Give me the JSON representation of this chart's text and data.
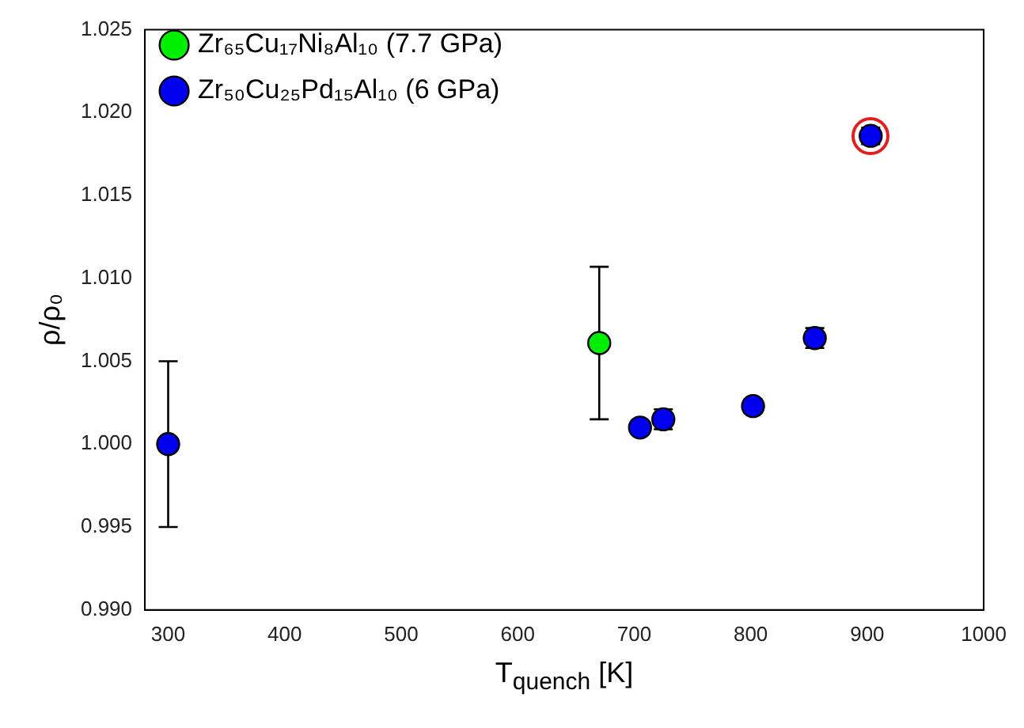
{
  "chart_data": {
    "type": "scatter",
    "xlabel": "T$_{quench}$ [K]",
    "ylabel": "ρ/ρ₀",
    "xlim": [
      280,
      1000
    ],
    "xticks": [
      300,
      400,
      500,
      600,
      700,
      800,
      900,
      1000
    ],
    "ylim": [
      0.99,
      1.025
    ],
    "yticks": [
      {
        "value": 0.99,
        "label": "0.990"
      },
      {
        "value": 0.995,
        "label": "0.995"
      },
      {
        "value": 1.0,
        "label": "1.000"
      },
      {
        "value": 1.005,
        "label": "1.005"
      },
      {
        "value": 1.01,
        "label": "1.010"
      },
      {
        "value": 1.015,
        "label": "1.015"
      },
      {
        "value": 1.02,
        "label": "1.020"
      },
      {
        "value": 1.025,
        "label": "1.025"
      }
    ],
    "grid": false,
    "legend": "top left",
    "marker": "circle",
    "series": [
      {
        "name": "Zr₆₅Cu₁₇Ni₈Al₁₀ (7.7 GPa)",
        "color": "#00ee00",
        "x": [
          670
        ],
        "values": [
          1.0061
        ],
        "errors": [
          [
            1.0015,
            1.0107
          ]
        ]
      },
      {
        "name": "Zr₅₀Cu₂₅Pd₁₅Al₁₀ (6 GPa)",
        "color": "#0000ee",
        "x": [
          300,
          705,
          725,
          802,
          855,
          903
        ],
        "values": [
          1.0,
          1.001,
          1.0015,
          1.0023,
          1.0064,
          1.0186
        ],
        "errors": [
          0.005,
          0.0004,
          0.0006,
          0.0004,
          0.0006,
          0.0005
        ]
      }
    ]
  }
}
